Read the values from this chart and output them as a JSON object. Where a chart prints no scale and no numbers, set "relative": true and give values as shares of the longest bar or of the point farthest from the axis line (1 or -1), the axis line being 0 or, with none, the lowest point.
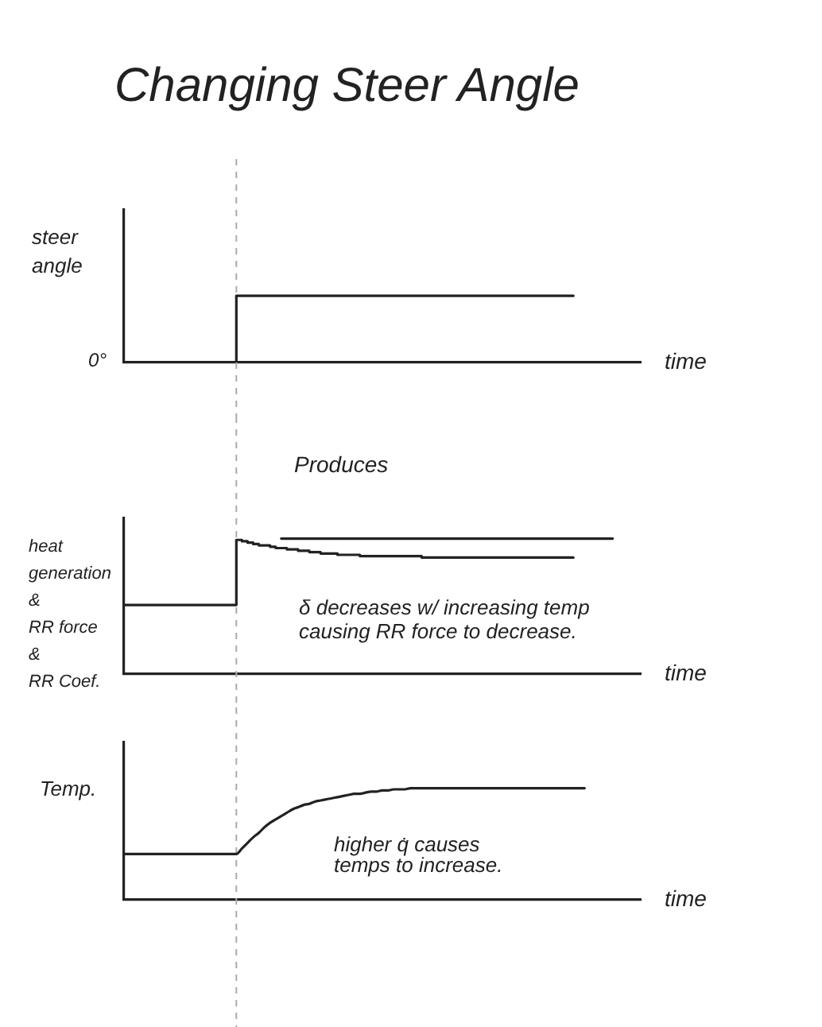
{
  "chart_data": [
    {
      "type": "step",
      "title": "Changing Steer Angle",
      "ylabel": "steer\nangle",
      "xlabel": "time",
      "relative": true,
      "marker": "none",
      "categories": [
        null,
        null,
        null,
        null,
        null,
        null,
        null,
        null,
        null,
        null,
        null,
        null,
        null,
        null,
        null,
        null,
        null,
        null,
        null,
        null,
        null,
        null,
        null,
        null,
        null,
        null,
        null,
        null,
        null,
        null,
        null,
        null,
        null,
        null,
        null,
        null,
        null,
        null,
        null,
        null,
        null,
        null,
        null,
        null,
        null,
        null,
        null,
        null,
        null,
        null,
        null,
        null,
        null,
        null,
        null,
        null,
        null,
        null,
        null,
        null,
        null,
        null,
        null,
        null,
        null,
        null,
        null,
        null,
        null,
        null,
        null,
        null,
        null,
        null,
        null,
        null,
        null,
        null,
        null,
        null,
        null,
        null,
        null,
        null,
        null,
        null,
        null,
        null,
        null,
        null,
        null,
        null,
        null
      ],
      "series": [
        {
          "color": "#222222",
          "values": [
            0,
            0,
            0,
            0,
            0,
            0,
            0,
            0,
            0,
            0,
            0,
            0,
            0,
            0,
            0,
            0,
            0,
            0,
            0,
            0,
            1,
            1,
            1,
            1,
            1,
            1,
            1,
            1,
            1,
            1,
            1,
            1,
            1,
            1,
            1,
            1,
            1,
            1,
            1,
            1,
            1,
            1,
            1,
            1,
            1,
            1,
            1,
            1,
            1,
            1,
            1,
            1,
            1,
            1,
            1,
            1,
            1,
            1,
            1,
            1,
            1,
            1,
            1,
            1,
            1,
            1,
            1,
            1,
            1,
            1,
            1,
            1,
            1,
            1,
            1,
            1,
            1,
            1,
            1,
            1,
            1,
            null,
            null,
            null,
            null,
            null,
            null,
            null,
            null,
            null,
            null,
            null,
            null
          ]
        }
      ],
      "annotations": [
        "0°"
      ]
    },
    {
      "type": "line",
      "title": "Produces",
      "ylabel": "heat\ngeneration\n&\nRR force\n&\nRR Coef.",
      "xlabel": "time",
      "relative": true,
      "marker": "none",
      "categories": [
        null,
        null,
        null,
        null,
        null,
        null,
        null,
        null,
        null,
        null,
        null,
        null,
        null,
        null,
        null,
        null,
        null,
        null,
        null,
        null,
        null,
        null,
        null,
        null,
        null,
        null,
        null,
        null,
        null,
        null,
        null,
        null,
        null,
        null,
        null,
        null,
        null,
        null,
        null,
        null,
        null,
        null,
        null,
        null,
        null,
        null,
        null,
        null,
        null,
        null,
        null,
        null,
        null,
        null,
        null,
        null,
        null,
        null,
        null,
        null,
        null,
        null,
        null,
        null,
        null,
        null,
        null,
        null,
        null,
        null,
        null,
        null,
        null,
        null,
        null,
        null,
        null,
        null,
        null,
        null,
        null,
        null,
        null,
        null,
        null,
        null,
        null,
        null,
        null,
        null,
        null,
        null,
        null
      ],
      "series": [
        {
          "type": "step",
          "color": "#222222",
          "values": [
            0.51,
            0.51,
            0.51,
            0.51,
            0.51,
            0.51,
            0.51,
            0.51,
            0.51,
            0.51,
            0.51,
            0.51,
            0.51,
            0.51,
            0.51,
            0.51,
            0.51,
            0.51,
            0.51,
            0.51,
            0.99,
            0.98,
            0.97,
            0.96,
            0.95,
            0.95,
            0.94,
            0.93,
            0.93,
            0.92,
            0.92,
            0.91,
            0.91,
            0.9,
            0.9,
            0.89,
            0.89,
            0.89,
            0.88,
            0.88,
            0.88,
            0.88,
            0.87,
            0.87,
            0.87,
            0.87,
            0.87,
            0.87,
            0.87,
            0.87,
            0.87,
            0.87,
            0.87,
            0.86,
            0.86,
            0.86,
            0.86,
            0.86,
            0.86,
            0.86,
            0.86,
            0.86,
            0.86,
            0.86,
            0.86,
            0.86,
            0.86,
            0.86,
            0.86,
            0.86,
            0.86,
            0.86,
            0.86,
            0.86,
            0.86,
            0.86,
            0.86,
            0.86,
            0.86,
            0.86,
            0.86,
            null,
            null,
            null,
            null,
            null,
            null,
            null,
            null,
            null,
            null,
            null,
            null
          ]
        },
        {
          "type": "line",
          "color": "#222222",
          "values": [
            null,
            null,
            null,
            null,
            null,
            null,
            null,
            null,
            null,
            null,
            null,
            null,
            null,
            null,
            null,
            null,
            null,
            null,
            null,
            null,
            null,
            null,
            null,
            null,
            null,
            null,
            null,
            null,
            1,
            1,
            1,
            1,
            1,
            1,
            1,
            1,
            1,
            1,
            1,
            1,
            1,
            1,
            1,
            1,
            1,
            1,
            1,
            1,
            1,
            1,
            1,
            1,
            1,
            1,
            1,
            1,
            1,
            1,
            1,
            1,
            1,
            1,
            1,
            1,
            1,
            1,
            1,
            1,
            1,
            1,
            1,
            1,
            1,
            1,
            1,
            1,
            1,
            1,
            1,
            1,
            1,
            1,
            1,
            1,
            1,
            1,
            1,
            1,
            null,
            null,
            null,
            null,
            null
          ]
        }
      ],
      "annotations": [
        "δ decreases w/ increasing temp\ncausing RR force to decrease."
      ]
    },
    {
      "type": "line",
      "ylabel": "Temp.",
      "xlabel": "time",
      "relative": true,
      "marker": "none",
      "categories": [
        null,
        null,
        null,
        null,
        null,
        null,
        null,
        null,
        null,
        null,
        null,
        null,
        null,
        null,
        null,
        null,
        null,
        null,
        null,
        null,
        null,
        null,
        null,
        null,
        null,
        null,
        null,
        null,
        null,
        null,
        null,
        null,
        null,
        null,
        null,
        null,
        null,
        null,
        null,
        null,
        null,
        null,
        null,
        null,
        null,
        null,
        null,
        null,
        null,
        null,
        null,
        null,
        null,
        null,
        null,
        null,
        null,
        null,
        null,
        null,
        null,
        null,
        null,
        null,
        null,
        null,
        null,
        null,
        null,
        null,
        null,
        null,
        null,
        null,
        null,
        null,
        null,
        null,
        null,
        null,
        null,
        null,
        null,
        null,
        null,
        null,
        null,
        null,
        null,
        null,
        null,
        null,
        null
      ],
      "series": [
        {
          "color": "#222222",
          "values": [
            0.41,
            0.41,
            0.41,
            0.41,
            0.41,
            0.41,
            0.41,
            0.41,
            0.41,
            0.41,
            0.41,
            0.41,
            0.41,
            0.41,
            0.41,
            0.41,
            0.41,
            0.41,
            0.41,
            0.41,
            0.41,
            0.46,
            0.51,
            0.56,
            0.6,
            0.65,
            0.69,
            0.72,
            0.75,
            0.78,
            0.81,
            0.83,
            0.85,
            0.86,
            0.88,
            0.89,
            0.9,
            0.91,
            0.92,
            0.93,
            0.94,
            0.95,
            0.95,
            0.96,
            0.97,
            0.97,
            0.98,
            0.98,
            0.99,
            0.99,
            0.99,
            1,
            1,
            1,
            1,
            1,
            1,
            1,
            1,
            1,
            1,
            1,
            1,
            1,
            1,
            1,
            1,
            1,
            1,
            1,
            1,
            1,
            1,
            1,
            1,
            1,
            1,
            1,
            1,
            1,
            1,
            1,
            1,
            null,
            null,
            null,
            null,
            null,
            null,
            null,
            null,
            null,
            null
          ]
        }
      ],
      "annotations": [
        "higher q̇ causes\ntemps to increase."
      ]
    }
  ]
}
